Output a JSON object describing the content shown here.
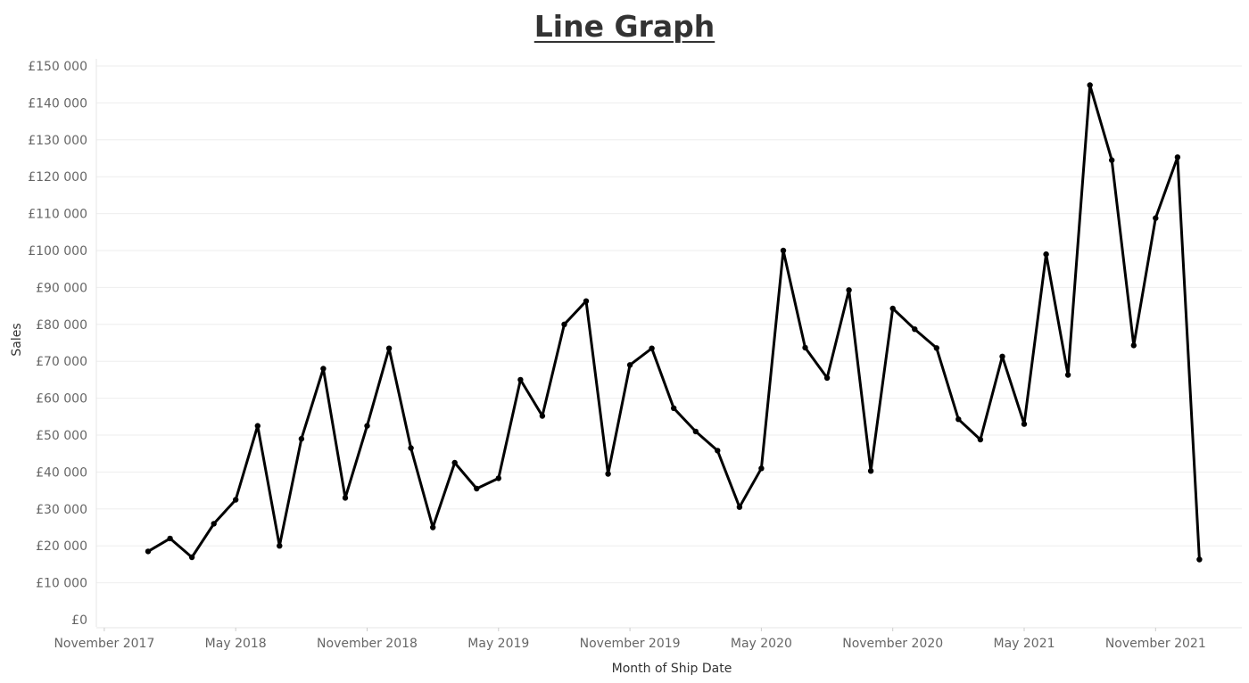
{
  "chart_data": {
    "type": "line",
    "title": "Line Graph",
    "xlabel": "Month of Ship Date",
    "ylabel": "Sales",
    "ylim": [
      0,
      150000
    ],
    "y_ticks": [
      {
        "value": 0,
        "label": "£0"
      },
      {
        "value": 10000,
        "label": "£10 000"
      },
      {
        "value": 20000,
        "label": "£20 000"
      },
      {
        "value": 30000,
        "label": "£30 000"
      },
      {
        "value": 40000,
        "label": "£40 000"
      },
      {
        "value": 50000,
        "label": "£50 000"
      },
      {
        "value": 60000,
        "label": "£60 000"
      },
      {
        "value": 70000,
        "label": "£70 000"
      },
      {
        "value": 80000,
        "label": "£80 000"
      },
      {
        "value": 90000,
        "label": "£90 000"
      },
      {
        "value": 100000,
        "label": "£100 000"
      },
      {
        "value": 110000,
        "label": "£110 000"
      },
      {
        "value": 120000,
        "label": "£120 000"
      },
      {
        "value": 130000,
        "label": "£130 000"
      },
      {
        "value": 140000,
        "label": "£140 000"
      },
      {
        "value": 150000,
        "label": "£150 000"
      }
    ],
    "x_ticks": [
      {
        "date": "2017-11",
        "label": "November 2017"
      },
      {
        "date": "2018-05",
        "label": "May 2018"
      },
      {
        "date": "2018-11",
        "label": "November 2018"
      },
      {
        "date": "2019-05",
        "label": "May 2019"
      },
      {
        "date": "2019-11",
        "label": "November 2019"
      },
      {
        "date": "2020-05",
        "label": "May 2020"
      },
      {
        "date": "2020-11",
        "label": "November 2020"
      },
      {
        "date": "2021-05",
        "label": "May 2021"
      },
      {
        "date": "2021-11",
        "label": "November 2021"
      }
    ],
    "grid": true,
    "series": [
      {
        "x": [
          "2018-01",
          "2018-02",
          "2018-03",
          "2018-04",
          "2018-05",
          "2018-06",
          "2018-07",
          "2018-08",
          "2018-09",
          "2018-10",
          "2018-11",
          "2018-12",
          "2019-01",
          "2019-02",
          "2019-03",
          "2019-04",
          "2019-05",
          "2019-06",
          "2019-07",
          "2019-08",
          "2019-09",
          "2019-10",
          "2019-11",
          "2019-12",
          "2020-01",
          "2020-02",
          "2020-03",
          "2020-04",
          "2020-05",
          "2020-06",
          "2020-07",
          "2020-08",
          "2020-09",
          "2020-10",
          "2020-11",
          "2020-12",
          "2021-01",
          "2021-02",
          "2021-03",
          "2021-04",
          "2021-05",
          "2021-06",
          "2021-07",
          "2021-08",
          "2021-09",
          "2021-10",
          "2021-11",
          "2021-12",
          "2022-01"
        ],
        "values": [
          18500,
          22000,
          16900,
          26000,
          32500,
          52500,
          20000,
          49000,
          68000,
          33000,
          52500,
          73500,
          46500,
          25000,
          42500,
          35500,
          38300,
          65000,
          55200,
          80000,
          86300,
          39500,
          69000,
          73500,
          57300,
          51000,
          45800,
          30500,
          41000,
          100000,
          73700,
          65500,
          89300,
          40300,
          84300,
          78700,
          73600,
          54300,
          48800,
          71300,
          53000,
          99000,
          66300,
          144800,
          124500,
          74300,
          108800,
          125300,
          16300
        ]
      }
    ]
  }
}
